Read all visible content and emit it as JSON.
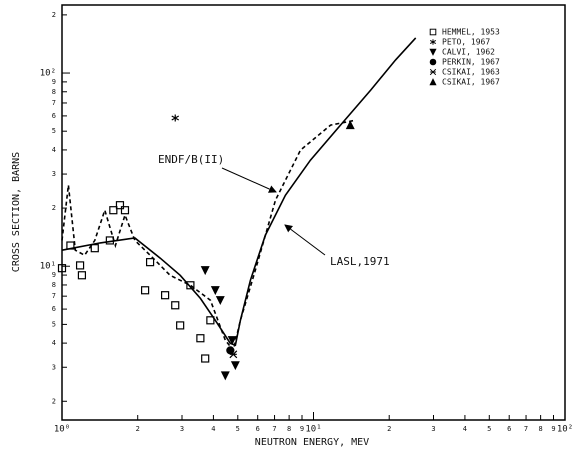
{
  "chart_data": {
    "type": "line",
    "log_x": true,
    "log_y": true,
    "color": "#000000",
    "xlabel": "NEUTRON ENERGY, MEV",
    "ylabel": "CROSS SECTION, BARNS",
    "xlim": [
      1,
      100
    ],
    "ylim": [
      1.6,
      225
    ],
    "xticks": [
      {
        "value": 1,
        "label": "10⁰"
      },
      2,
      3,
      4,
      5,
      6,
      7,
      8,
      9,
      {
        "value": 10,
        "label": "10¹"
      },
      {
        "value": 20,
        "label": "2"
      },
      {
        "value": 30,
        "label": "3"
      },
      {
        "value": 40,
        "label": "4"
      },
      {
        "value": 50,
        "label": "5"
      },
      {
        "value": 60,
        "label": "6"
      },
      {
        "value": 70,
        "label": "7"
      },
      {
        "value": 80,
        "label": "8"
      },
      {
        "value": 90,
        "label": "9"
      },
      {
        "value": 100,
        "label": "10²"
      }
    ],
    "yticks": [
      2,
      3,
      4,
      5,
      6,
      7,
      8,
      9,
      {
        "value": 10,
        "label": "10¹"
      },
      {
        "value": 20,
        "label": "2"
      },
      {
        "value": 30,
        "label": "3"
      },
      {
        "value": 40,
        "label": "4"
      },
      {
        "value": 50,
        "label": "5"
      },
      {
        "value": 60,
        "label": "6"
      },
      {
        "value": 70,
        "label": "7"
      },
      {
        "value": 80,
        "label": "8"
      },
      {
        "value": 90,
        "label": "9"
      },
      {
        "value": 100,
        "label": "10²"
      },
      {
        "value": 200,
        "label": "2"
      }
    ],
    "series": [
      {
        "name": "HEMMEL, 1953",
        "marker": "square",
        "x": [
          1,
          1.08,
          1.18,
          1.2,
          1.35,
          1.55,
          1.6,
          1.7,
          1.78,
          2.24,
          2.14,
          2.57,
          2.82,
          2.95,
          3.24,
          3.55,
          3.89,
          3.71
        ],
        "values": [
          9.77,
          12.8,
          10.1,
          8.98,
          12.4,
          13.6,
          19.5,
          20.7,
          19.5,
          10.5,
          7.51,
          7.08,
          6.28,
          4.94,
          7.97,
          4.24,
          5.25,
          3.33
        ]
      },
      {
        "name": "PETO, 1967",
        "marker": "star",
        "x": [
          2.82
        ],
        "values": [
          58.5
        ]
      },
      {
        "name": "CALVI, 1962",
        "marker": "tridown",
        "x": [
          3.71,
          4.07,
          4.26,
          4.46,
          4.89,
          4.75
        ],
        "values": [
          9.53,
          7.51,
          6.67,
          2.72,
          3.07,
          4.14
        ]
      },
      {
        "name": "PERKIN, 1967",
        "marker": "circle",
        "x": [
          4.67
        ],
        "values": [
          3.67
        ]
      },
      {
        "name": "CSIKAI, 1963",
        "marker": "cross",
        "x": [
          4.8
        ],
        "values": [
          3.5
        ]
      },
      {
        "name": "CSIKAI, 1967",
        "marker": "tri",
        "x": [
          14.0
        ],
        "values": [
          53.8
        ]
      },
      {
        "name": "ENDF/B(II)",
        "style": "dashed",
        "x": [
          1,
          1.06,
          1.13,
          1.23,
          1.35,
          1.48,
          1.63,
          1.78,
          1.95,
          2.24,
          2.69,
          3.24,
          3.89,
          4.46,
          4.8,
          5.12,
          5.87,
          7.06,
          8.88,
          11.7,
          14.7
        ],
        "values": [
          13.6,
          26.3,
          12.1,
          11.4,
          13.6,
          19.5,
          12.8,
          18.4,
          13.6,
          11.4,
          8.98,
          7.97,
          6.67,
          4.14,
          3.67,
          5.25,
          9.53,
          22.0,
          39.9,
          53.8,
          57.0
        ]
      },
      {
        "name": "LASL,1971",
        "style": "solid",
        "x": [
          1,
          1.42,
          1.95,
          2.46,
          2.95,
          3.55,
          4.07,
          4.67,
          4.89,
          5.12,
          5.61,
          6.44,
          7.73,
          9.72,
          12.8,
          16.9,
          21.2,
          25.5
        ],
        "values": [
          12.1,
          13.2,
          14.0,
          11.0,
          8.98,
          6.82,
          5.25,
          3.99,
          3.9,
          5.25,
          8.46,
          14.5,
          23.3,
          35.4,
          53.8,
          81.7,
          117,
          152
        ]
      }
    ]
  }
}
